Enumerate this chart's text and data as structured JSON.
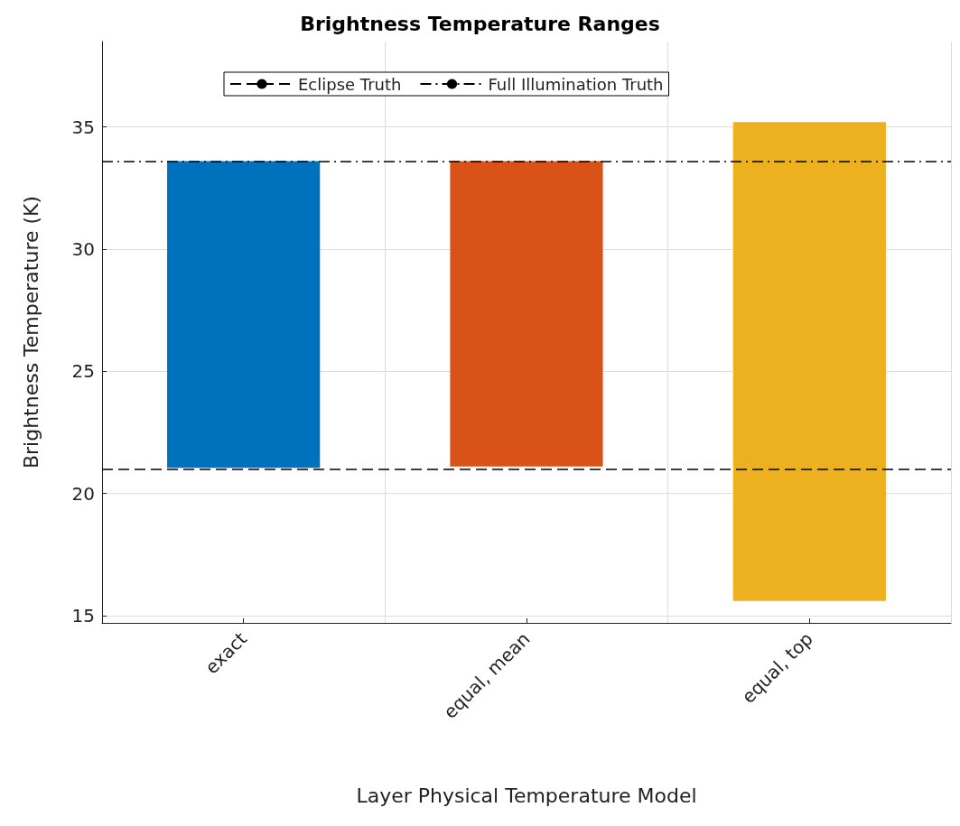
{
  "chart_data": {
    "type": "bar",
    "title": "Brightness Temperature Ranges",
    "xlabel": "Layer Physical Temperature Model",
    "ylabel": "Brightness Temperature (K)",
    "categories": [
      "exact",
      "equal, mean",
      "equal, top"
    ],
    "base": [
      21.05,
      21.1,
      15.6
    ],
    "values": [
      12.55,
      12.5,
      19.6
    ],
    "colors": [
      "#0072bd",
      "#d95319",
      "#edb120"
    ],
    "ylim": [
      14.7,
      38.5
    ],
    "yticks": [
      15,
      20,
      25,
      30,
      35
    ],
    "ref_lines": [
      {
        "axis": "y",
        "value": 21.0,
        "label": "Eclipse Truth",
        "color": "#000000",
        "line_style": "dashed"
      },
      {
        "axis": "y",
        "value": 33.6,
        "label": "Full Illumination Truth",
        "color": "#000000",
        "line_style": "dashdot"
      }
    ],
    "grid": true,
    "legend": "top"
  }
}
